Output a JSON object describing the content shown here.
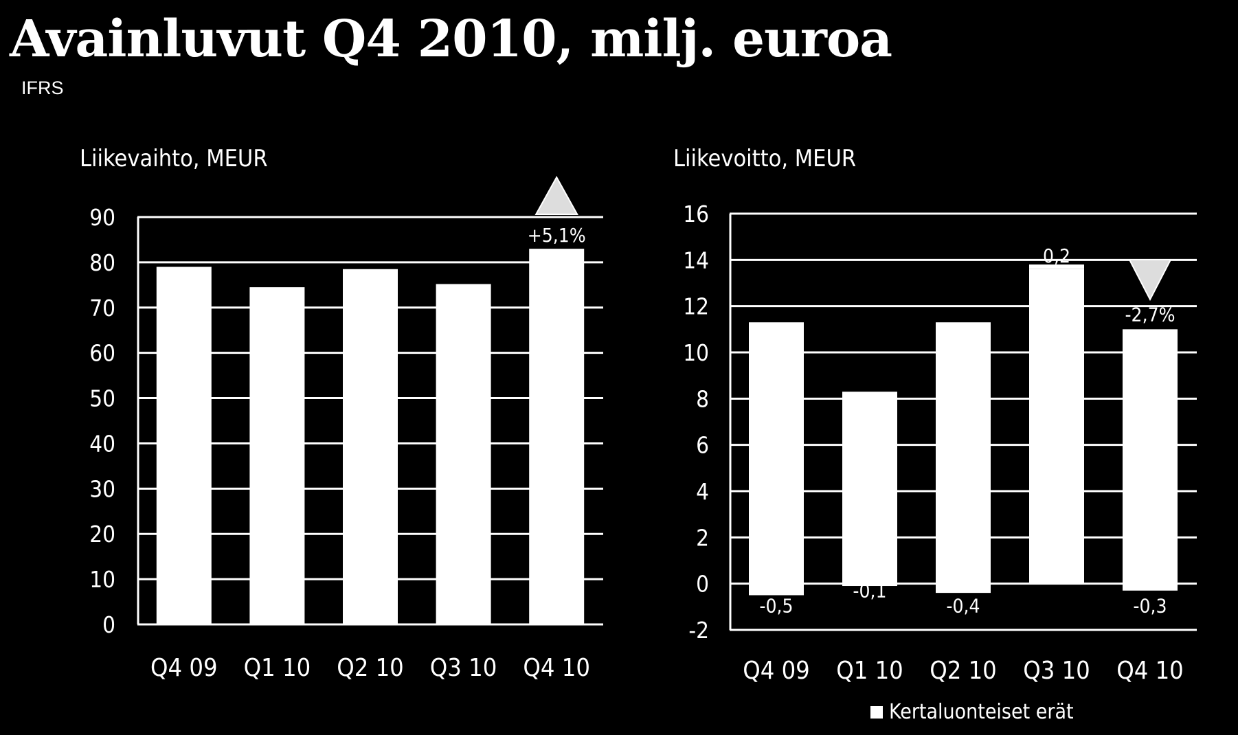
{
  "page": {
    "title": "Avainluvut Q4 2010, milj. euroa",
    "subtitle": "IFRS"
  },
  "chart_data": [
    {
      "type": "bar",
      "title": "Liikevaihto, MEUR",
      "categories": [
        "Q4 09",
        "Q1 10",
        "Q2 10",
        "Q3 10",
        "Q4 10"
      ],
      "values": [
        79,
        74.5,
        78.5,
        75.2,
        83
      ],
      "ylim": [
        0,
        90
      ],
      "yticks": [
        0,
        10,
        20,
        30,
        40,
        50,
        60,
        70,
        80,
        90
      ],
      "grid": true,
      "change_label": "+5,1%",
      "change_direction": "up",
      "bar_color": "#ffffff"
    },
    {
      "type": "bar",
      "title": "Liikevoitto, MEUR",
      "categories": [
        "Q4 09",
        "Q1 10",
        "Q2 10",
        "Q3 10",
        "Q4 10"
      ],
      "values": [
        11.3,
        8.3,
        11.3,
        13.6,
        11.0
      ],
      "series": [
        {
          "name": "Kertaluonteiset erät",
          "values": [
            -0.5,
            -0.1,
            -0.4,
            0.2,
            -0.3
          ],
          "labels": [
            "-0,5",
            "-0,1",
            "-0,4",
            "0,2",
            "-0,3"
          ]
        }
      ],
      "ylim": [
        -2,
        16
      ],
      "yticks": [
        -2,
        0,
        2,
        4,
        6,
        8,
        10,
        12,
        14,
        16
      ],
      "grid": true,
      "change_label": "-2,7%",
      "change_direction": "down",
      "legend": "bottom-right",
      "bar_color": "#ffffff"
    }
  ]
}
